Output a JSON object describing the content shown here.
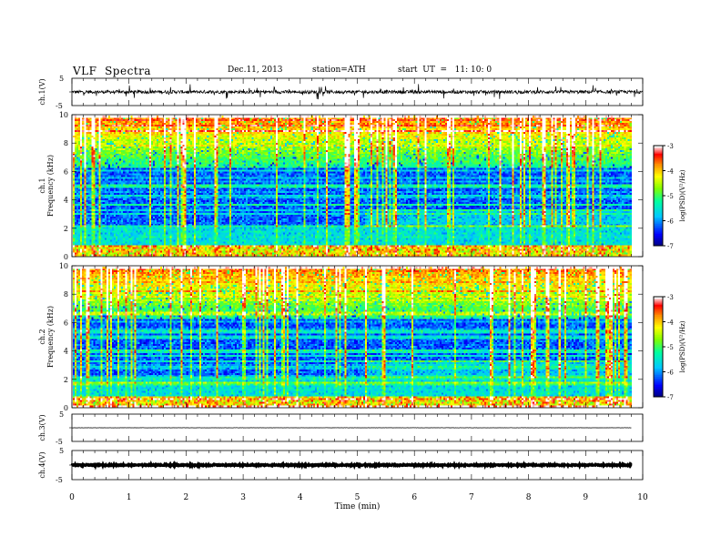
{
  "header": {
    "title": "VLF  Spectra",
    "date": "Dec.11, 2013",
    "station": "station=ATH",
    "start_time": "start  UT  =   11: 10: 0"
  },
  "chart_data": [
    {
      "id": "ch1-waveform",
      "type": "line",
      "ylabel": "ch.1(V)",
      "ylim": [
        -5,
        5
      ],
      "y_ticks": [
        "5",
        "-5"
      ],
      "baseline": 0,
      "noise_amplitude": 0.6,
      "spike_amplitude": 2.5,
      "xlim": [
        0,
        10
      ]
    },
    {
      "id": "ch1-spectrogram",
      "type": "heatmap",
      "ylabel_channel": "ch.1",
      "ylabel": "Frequency  (kHz)",
      "ylim": [
        0,
        10
      ],
      "y_ticks": [
        "0",
        "2",
        "4",
        "6",
        "8",
        "10"
      ],
      "xlim": [
        0,
        9.8
      ],
      "colorbar": {
        "label": "log(PSD)(V²/Hz)",
        "range": [
          -7,
          -3
        ],
        "ticks": [
          "-3",
          "-4",
          "-5",
          "-6",
          "-7"
        ]
      },
      "regime_change_min": 5.1
    },
    {
      "id": "ch2-spectrogram",
      "type": "heatmap",
      "ylabel_channel": "ch.2",
      "ylabel": "Frequency  (kHz)",
      "ylim": [
        0,
        10
      ],
      "y_ticks": [
        "0",
        "2",
        "4",
        "6",
        "8",
        "10"
      ],
      "xlim": [
        0,
        9.8
      ],
      "colorbar": {
        "label": "log(PSD)(V²/Hz)",
        "range": [
          -7,
          -3
        ],
        "ticks": [
          "-3",
          "-4",
          "-5",
          "-6",
          "-7"
        ]
      },
      "regime_change_min": 5.1
    },
    {
      "id": "ch3-waveform",
      "type": "line",
      "ylabel": "ch.3(V)",
      "ylim": [
        -5,
        5
      ],
      "y_ticks": [
        "5",
        "-5"
      ],
      "baseline": 0,
      "noise_amplitude": 0.05,
      "xlim": [
        0,
        9.8
      ]
    },
    {
      "id": "ch4-waveform",
      "type": "line",
      "ylabel": "ch.4(V)",
      "ylim": [
        -5,
        5
      ],
      "y_ticks": [
        "5",
        "-5"
      ],
      "baseline": 0,
      "noise_amplitude": 0.2,
      "xlim": [
        0,
        9.8
      ]
    }
  ],
  "x_axis": {
    "label": "Time  (min)",
    "range": [
      0,
      10
    ],
    "ticks": [
      "0",
      "1",
      "2",
      "3",
      "4",
      "5",
      "6",
      "7",
      "8",
      "9",
      "10"
    ]
  },
  "colors": {
    "colormap": [
      "#000088",
      "#0000ff",
      "#00bfff",
      "#00ff80",
      "#7fff00",
      "#ffff00",
      "#ff8000",
      "#ff0000",
      "#ffffff"
    ]
  }
}
